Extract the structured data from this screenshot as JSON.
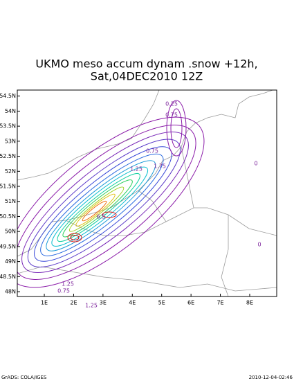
{
  "map": {
    "title": "UKMO meso accum dynam .snow +12h,",
    "subtitle": "Sat,04DEC2010 12Z",
    "xlim": [
      0.08,
      8.92
    ],
    "ylim": [
      47.84,
      54.7
    ],
    "xticks": [
      {
        "value": 1,
        "label": "1E"
      },
      {
        "value": 2,
        "label": "2E"
      },
      {
        "value": 3,
        "label": "3E"
      },
      {
        "value": 4,
        "label": "4E"
      },
      {
        "value": 5,
        "label": "5E"
      },
      {
        "value": 6,
        "label": "6E"
      },
      {
        "value": 7,
        "label": "7E"
      },
      {
        "value": 8,
        "label": "8E"
      }
    ],
    "yticks": [
      {
        "value": 48,
        "label": "48N"
      },
      {
        "value": 48.5,
        "label": "48.5N"
      },
      {
        "value": 49,
        "label": "49N"
      },
      {
        "value": 49.5,
        "label": "49.5N"
      },
      {
        "value": 50,
        "label": "50N"
      },
      {
        "value": 50.5,
        "label": "50.5N"
      },
      {
        "value": 51,
        "label": "51N"
      },
      {
        "value": 51.5,
        "label": "51.5N"
      },
      {
        "value": 52,
        "label": "52N"
      },
      {
        "value": 52.5,
        "label": "52.5N"
      },
      {
        "value": 53,
        "label": "53N"
      },
      {
        "value": 53.5,
        "label": "53.5N"
      },
      {
        "value": 54,
        "label": "54N"
      },
      {
        "value": 54.5,
        "label": "54.5N"
      }
    ],
    "contour_labels": [
      "0.25",
      "0.75",
      "0.75",
      "1.25",
      "1.75",
      "6.5",
      "1.25",
      "0.75",
      "1.25",
      "0",
      "0"
    ]
  },
  "footer": {
    "left": "GrADS: COLA/IGES",
    "right": "2010-12-04-02:46"
  }
}
